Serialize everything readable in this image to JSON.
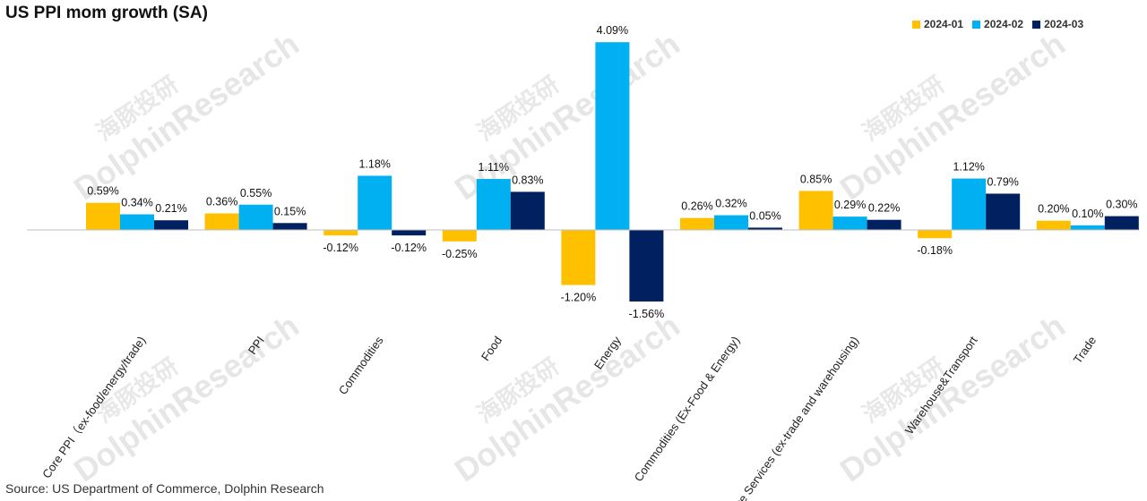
{
  "chart_data": {
    "type": "bar",
    "title": "US PPI mom growth (SA)",
    "source": "Source: US Department of Commerce, Dolphin Research",
    "watermark": "DolphinResearch",
    "watermark_cn": "海豚投研",
    "categories": [
      "Core PPI（ex-food/energy/trade)",
      "PPI",
      "Commodities",
      "Food",
      "Energy",
      "Commodities (Ex-Food & Energy)",
      "Core Services (ex-trade and warehousing)",
      "Warehouse&Transport",
      "Trade"
    ],
    "series": [
      {
        "name": "2024-01",
        "color": "#FFC000",
        "values": [
          0.59,
          0.36,
          -0.12,
          -0.25,
          -1.2,
          0.26,
          0.85,
          -0.18,
          0.2
        ],
        "labels": [
          "0.59%",
          "0.36%",
          "-0.12%",
          "-0.25%",
          "-1.20%",
          "0.26%",
          "0.85%",
          "-0.18%",
          "0.20%"
        ]
      },
      {
        "name": "2024-02",
        "color": "#00B0F0",
        "values": [
          0.34,
          0.55,
          1.18,
          1.11,
          4.09,
          0.32,
          0.29,
          1.12,
          0.1
        ],
        "labels": [
          "0.34%",
          "0.55%",
          "1.18%",
          "1.11%",
          "4.09%",
          "0.32%",
          "0.29%",
          "1.12%",
          "0.10%"
        ]
      },
      {
        "name": "2024-03",
        "color": "#002060",
        "values": [
          0.21,
          0.15,
          -0.12,
          0.83,
          -1.56,
          0.05,
          0.22,
          0.79,
          0.3
        ],
        "labels": [
          "0.21%",
          "0.15%",
          "-0.12%",
          "0.83%",
          "-1.56%",
          "0.05%",
          "0.22%",
          "0.79%",
          "0.30%"
        ]
      }
    ],
    "ylim": [
      -1.56,
      4.09
    ],
    "grid": false,
    "legend": "top-right"
  }
}
